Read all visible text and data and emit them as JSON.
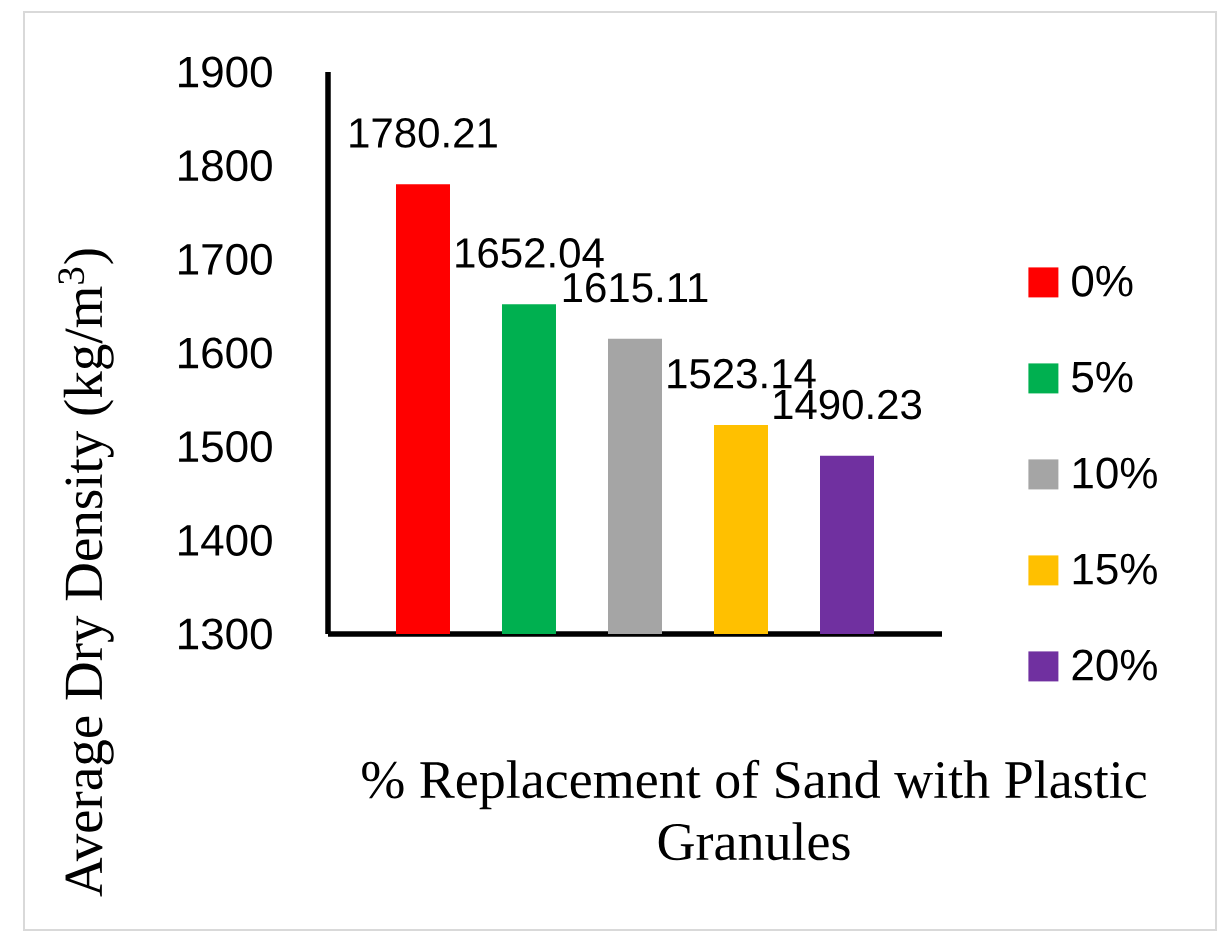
{
  "chart_data": {
    "type": "bar",
    "xlabel": "% Replacement of Sand with Plastic Granules",
    "ylabel": "Average Dry Density (kg/m$^{3}$)",
    "categories": [
      null
    ],
    "series": [
      {
        "name": "0%",
        "color": "#ff0000",
        "values": [
          1780.21
        ]
      },
      {
        "name": "5%",
        "color": "#00b050",
        "values": [
          1652.04
        ]
      },
      {
        "name": "10%",
        "color": "#a5a5a5",
        "values": [
          1615.11
        ]
      },
      {
        "name": "15%",
        "color": "#ffc000",
        "values": [
          1523.14
        ]
      },
      {
        "name": "20%",
        "color": "#7030a0",
        "values": [
          1490.23
        ]
      }
    ],
    "ylim": [
      1300,
      1900
    ],
    "yticks": [
      1300,
      1400,
      1500,
      1600,
      1700,
      1800,
      1900
    ],
    "data_labels": true,
    "legend": "right"
  }
}
